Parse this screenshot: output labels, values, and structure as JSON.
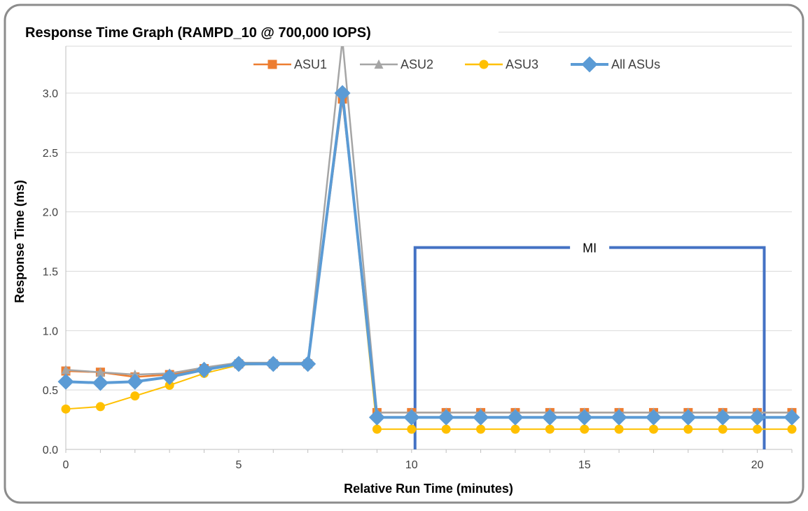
{
  "chart_data": {
    "type": "line",
    "title": "Response Time Graph (RAMPD_10 @ 700,000 IOPS)",
    "xlabel": "Relative Run Time (minutes)",
    "ylabel": "Response Time (ms)",
    "xlim": [
      0,
      21
    ],
    "ylim": [
      0,
      3.0
    ],
    "x_ticks": [
      0,
      5,
      10,
      15,
      20
    ],
    "y_ticks": [
      0.0,
      0.5,
      1.0,
      1.5,
      2.0,
      2.5,
      3.0
    ],
    "x_tick_labels": [
      "0",
      "5",
      "10",
      "15",
      "20"
    ],
    "y_tick_labels": [
      "0.0",
      "0.5",
      "1.0",
      "1.5",
      "2.0",
      "2.5",
      "3.0"
    ],
    "grid": "horizontal",
    "legend_position": "top-center",
    "x": [
      0,
      1,
      2,
      3,
      4,
      5,
      6,
      7,
      8,
      9,
      10,
      11,
      12,
      13,
      14,
      15,
      16,
      17,
      18,
      19,
      20,
      21
    ],
    "series": [
      {
        "name": "ASU1",
        "color": "#ED7D31",
        "marker": "square",
        "values": [
          0.66,
          0.65,
          0.61,
          0.63,
          0.68,
          0.72,
          0.72,
          0.72,
          2.95,
          0.31,
          0.31,
          0.31,
          0.31,
          0.31,
          0.31,
          0.31,
          0.31,
          0.31,
          0.31,
          0.31,
          0.31,
          0.31
        ]
      },
      {
        "name": "ASU2",
        "color": "#A5A5A5",
        "marker": "triangle",
        "values": [
          0.67,
          0.65,
          0.63,
          0.64,
          0.69,
          0.73,
          0.73,
          0.73,
          3.45,
          0.31,
          0.31,
          0.31,
          0.31,
          0.31,
          0.31,
          0.31,
          0.31,
          0.31,
          0.31,
          0.31,
          0.31,
          0.31
        ]
      },
      {
        "name": "ASU3",
        "color": "#FFC000",
        "marker": "circle",
        "values": [
          0.34,
          0.36,
          0.45,
          0.54,
          0.64,
          0.71,
          0.72,
          0.72,
          3.0,
          0.17,
          0.17,
          0.17,
          0.17,
          0.17,
          0.17,
          0.17,
          0.17,
          0.17,
          0.17,
          0.17,
          0.17,
          0.17
        ]
      },
      {
        "name": "All ASUs",
        "color": "#5B9BD5",
        "marker": "diamond",
        "values": [
          0.57,
          0.56,
          0.57,
          0.61,
          0.67,
          0.72,
          0.72,
          0.72,
          3.0,
          0.27,
          0.27,
          0.27,
          0.27,
          0.27,
          0.27,
          0.27,
          0.27,
          0.27,
          0.27,
          0.27,
          0.27,
          0.27
        ]
      }
    ],
    "annotations": [
      {
        "label": "MI",
        "type": "bracket",
        "x_start": 10.1,
        "x_end": 20.2,
        "y": 1.7,
        "color": "#4472C4"
      }
    ]
  }
}
